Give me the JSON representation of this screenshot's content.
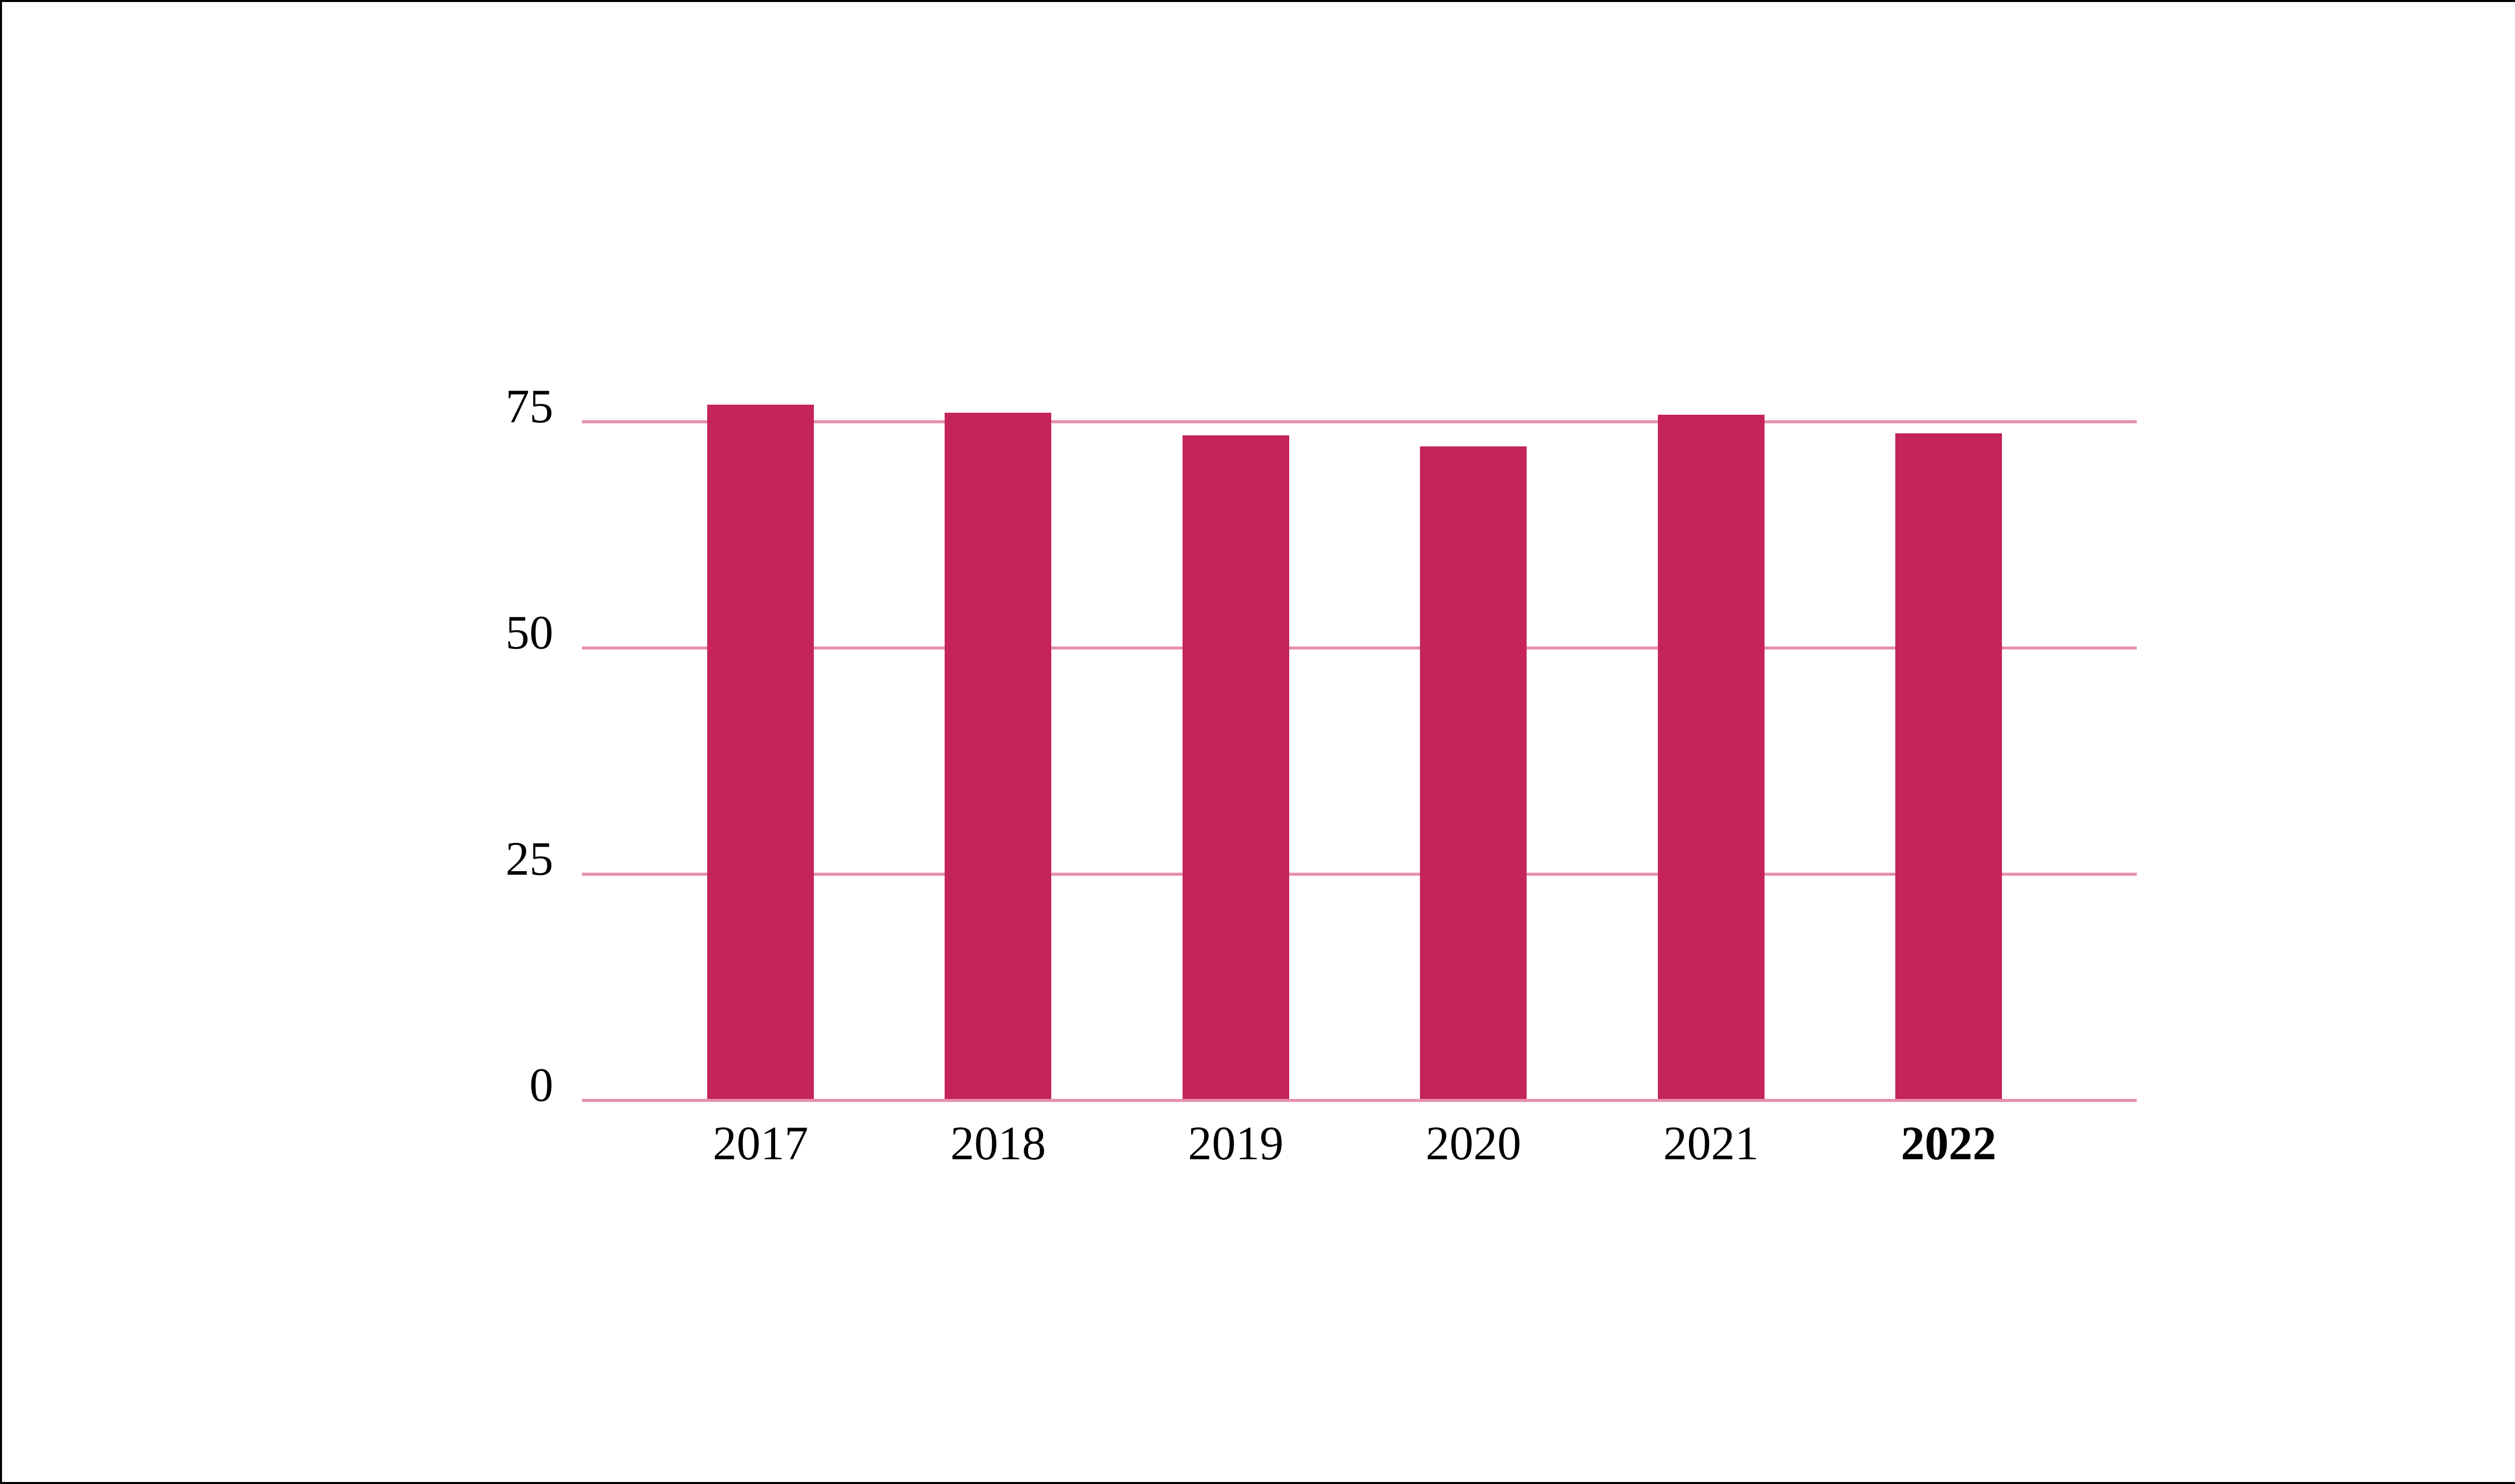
{
  "chart_data": {
    "type": "bar",
    "categories": [
      "2017",
      "2018",
      "2019",
      "2020",
      "2021",
      "2022"
    ],
    "values": [
      76.9,
      76.0,
      73.5,
      72.3,
      75.8,
      73.7
    ],
    "bold_category": "2022",
    "y_ticks": [
      0,
      25,
      50,
      75
    ],
    "ylim": [
      0,
      75
    ],
    "grid": true,
    "legend": "none",
    "title": "",
    "xlabel": "",
    "ylabel": "",
    "colors": {
      "bar": "#C4235B",
      "gridline": "#E78FB1",
      "baseline": "#E78FB1",
      "text": "#000000",
      "background": "#FFFFFF",
      "border": "#000000"
    }
  }
}
